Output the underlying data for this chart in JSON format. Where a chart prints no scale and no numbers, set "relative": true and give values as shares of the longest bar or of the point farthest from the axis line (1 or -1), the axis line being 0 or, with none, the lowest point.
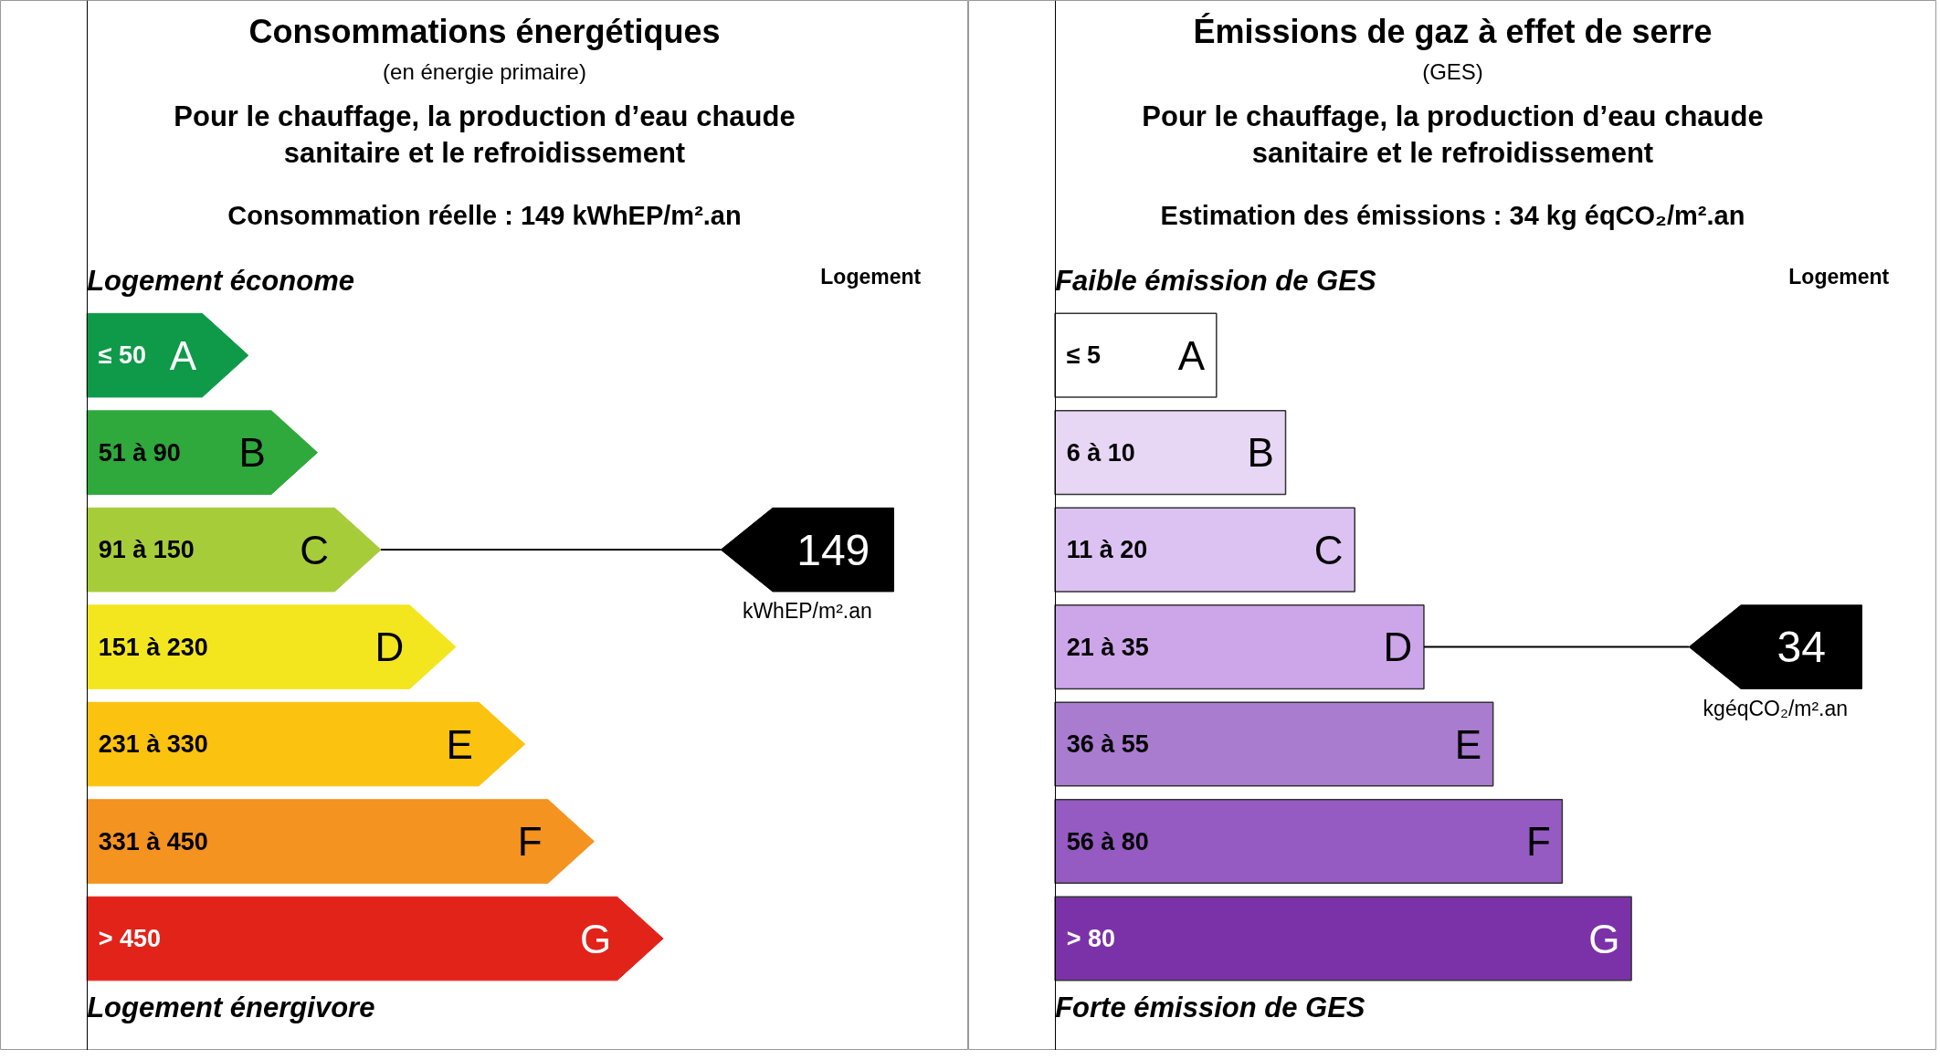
{
  "chart_data": [
    {
      "type": "bar",
      "orientation": "horizontal",
      "relative": true,
      "title": "Consommations énergétiques",
      "subtitle": "(en énergie primaire)",
      "categories": [
        "≤ 50",
        "51 à 90",
        "91 à 150",
        "151 à 230",
        "231 à 330",
        "331 à 450",
        "> 450"
      ],
      "values": [
        0.28,
        0.4,
        0.51,
        0.64,
        0.76,
        0.88,
        1
      ],
      "colors": [
        "#0e9a48",
        "#2fa83c",
        "#a7cc3a",
        "#f3e61e",
        "#fbc20f",
        "#f4931f",
        "#e2231a"
      ],
      "annotations": [
        "Pour le chauffage, la production d’eau chaude\nsanitaire et le refroidissement",
        "Consommation réelle : 149 kWhEP/m².an",
        "Logement économe",
        "Logement énergivore",
        "Logement",
        "149",
        "kWhEP/m².an",
        {
          "text": "A",
          "x": 0.28,
          "y": "≤ 50"
        },
        {
          "text": "B",
          "x": 0.4,
          "y": "51 à 90"
        },
        {
          "text": "C",
          "x": 0.51,
          "y": "91 à 150"
        },
        {
          "text": "D",
          "x": 0.64,
          "y": "151 à 230"
        },
        {
          "text": "E",
          "x": 0.76,
          "y": "231 à 330"
        },
        {
          "text": "F",
          "x": 0.88,
          "y": "331 à 450"
        },
        {
          "text": "G",
          "x": 1,
          "y": "> 450"
        }
      ]
    },
    {
      "type": "bar",
      "orientation": "horizontal",
      "relative": true,
      "title": "Émissions de gaz à effet de serre",
      "subtitle": "(GES)",
      "categories": [
        "≤ 5",
        "6 à 10",
        "11 à 20",
        "21 à 35",
        "36 à 55",
        "56 à 80",
        "> 80"
      ],
      "values": [
        0.28,
        0.4,
        0.52,
        0.64,
        0.76,
        0.88,
        1
      ],
      "colors": [
        "#ffffff",
        "#e8d6f5",
        "#dcc2f2",
        "#cda6ea",
        "#a97ccf",
        "#955bc2",
        "#7b32a8"
      ],
      "annotations": [
        "Pour le chauffage, la production d’eau chaude\nsanitaire et le refroidissement",
        "Estimation des émissions : 34 kg éqCO₂/m².an",
        "Faible émission de GES",
        "Forte émission de GES",
        "Logement",
        "34",
        "kgéqCO₂/m².an",
        {
          "text": "A",
          "x": 0.28,
          "y": "≤ 5"
        },
        {
          "text": "B",
          "x": 0.4,
          "y": "6 à 10"
        },
        {
          "text": "C",
          "x": 0.52,
          "y": "11 à 20"
        },
        {
          "text": "D",
          "x": 0.64,
          "y": "21 à 35"
        },
        {
          "text": "E",
          "x": 0.76,
          "y": "36 à 55"
        },
        {
          "text": "F",
          "x": 0.88,
          "y": "56 à 80"
        },
        {
          "text": "G",
          "x": 1,
          "y": "> 80"
        }
      ]
    }
  ]
}
